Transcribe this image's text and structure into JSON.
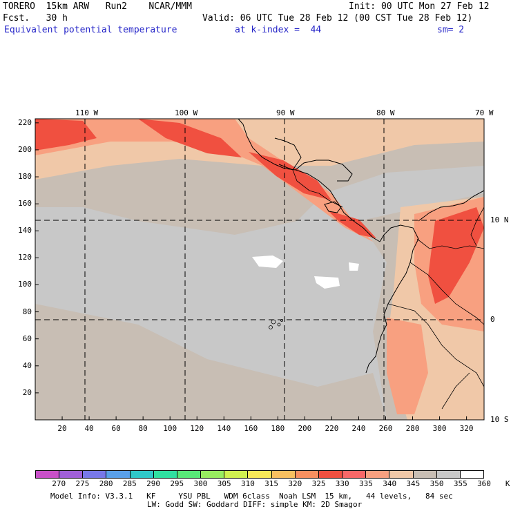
{
  "header": {
    "model": "TORERO  15km ARW   Run2    NCAR/MMM",
    "init": "Init: 00 UTC Mon 27 Feb 12",
    "fcst": "Fcst.   30 h",
    "valid": "Valid: 06 UTC Tue 28 Feb 12 (00 CST Tue 28 Feb 12)",
    "field": "Equivalent potential temperature",
    "level": "at k-index =  44",
    "smooth": "sm= 2"
  },
  "axes": {
    "top_labels": [
      "110 W",
      "100 W",
      "90 W",
      "80 W",
      "70 W"
    ],
    "right_labels": [
      "10 N",
      "0",
      "10 S"
    ],
    "y_ticks": [
      20,
      40,
      60,
      80,
      100,
      120,
      140,
      160,
      180,
      200,
      220
    ],
    "x_ticks": [
      20,
      40,
      60,
      80,
      100,
      120,
      140,
      160,
      180,
      200,
      220,
      240,
      260,
      280,
      300,
      320
    ]
  },
  "colorbar": {
    "labels": [
      "270",
      "275",
      "280",
      "285",
      "290",
      "295",
      "300",
      "305",
      "310",
      "315",
      "320",
      "325",
      "330",
      "335",
      "340",
      "345",
      "350",
      "355",
      "360",
      "K"
    ],
    "colors": [
      "#c850c8",
      "#a060d8",
      "#7878e8",
      "#5aa0e8",
      "#30c8c8",
      "#30e0a0",
      "#58e878",
      "#98ec60",
      "#d0f050",
      "#f8e858",
      "#f8c060",
      "#f89060",
      "#f05040",
      "#f86868",
      "#f8a080",
      "#f0c8a8",
      "#c8beb4",
      "#c8c8c8",
      "#ffffff"
    ]
  },
  "footer": {
    "line1": "Model Info: V3.3.1   KF     YSU PBL   WDM 6class  Noah LSM  15 km,   44 levels,   84 sec",
    "line2": "LW: Godd SW: Goddard DIFF: simple KM: 2D Smagor"
  }
}
